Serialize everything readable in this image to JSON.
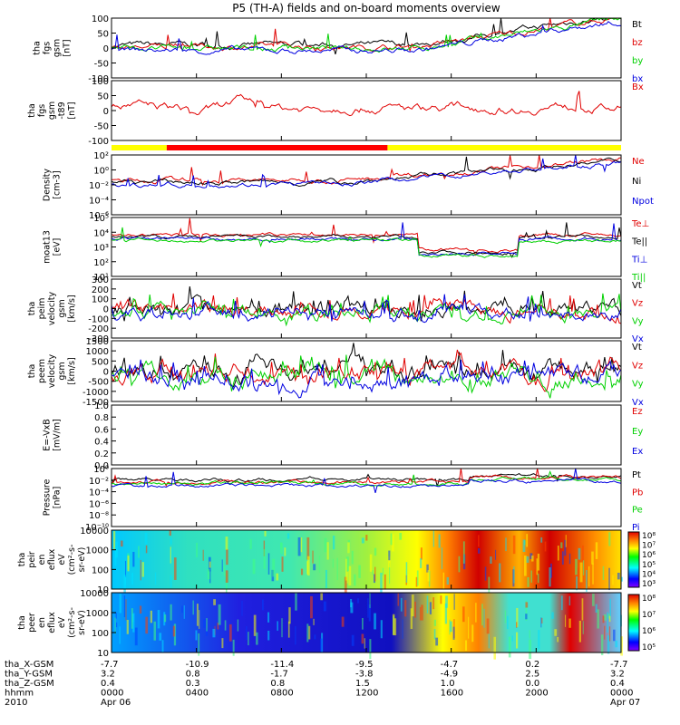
{
  "title": "P5 (TH-A) fields and on-board moments overview",
  "colors": {
    "black": "#000000",
    "red": "#e00000",
    "green": "#00d000",
    "blue": "#0000e0",
    "yellow": "#ffff00",
    "barred": "#ff0000"
  },
  "chart_data": [
    {
      "type": "line",
      "id": "fgs",
      "ylabel": [
        "tha",
        "fgs",
        "gsm",
        "[nT]"
      ],
      "ylim": [
        -100,
        100
      ],
      "yticks": [
        "100",
        "50",
        "0",
        "-50",
        "-100"
      ],
      "legend": [
        {
          "text": "Bt",
          "color": "#000000"
        },
        {
          "text": "bz",
          "color": "#e00000"
        },
        {
          "text": "by",
          "color": "#00d000"
        },
        {
          "text": "bx",
          "color": "#0000e0"
        }
      ]
    },
    {
      "type": "line",
      "id": "fgs-dsl",
      "ylabel": [
        "tha",
        "fgs",
        "gsm",
        "-t89",
        "[nT]"
      ],
      "ylim": [
        -120,
        120
      ],
      "yticks": [
        "100",
        "50",
        "0",
        "-50",
        "-100"
      ],
      "legend": [
        {
          "text": "Bx",
          "color": "#e00000"
        }
      ]
    },
    {
      "type": "bar",
      "id": "mode-bar",
      "segments": [
        {
          "from": 0,
          "to": 2.6,
          "color": "#ffff00"
        },
        {
          "from": 2.6,
          "to": 13.0,
          "color": "#ff0000"
        },
        {
          "from": 13.0,
          "to": 24,
          "color": "#ffff00"
        }
      ]
    },
    {
      "type": "line",
      "id": "density",
      "log": true,
      "ylabel": [
        "Density",
        "[cm-3]"
      ],
      "ylim": [
        -5,
        2
      ],
      "yticks": [
        "10²",
        "10⁰",
        "10⁻²",
        "10⁻⁴",
        "10⁻⁶"
      ],
      "legend": [
        {
          "text": "Ne",
          "color": "#e00000"
        },
        {
          "text": "Ni",
          "color": "#000000"
        },
        {
          "text": "Npot",
          "color": "#0000e0"
        }
      ]
    },
    {
      "type": "line",
      "id": "temp",
      "log": true,
      "ylabel": [
        "moat13",
        "[eV]"
      ],
      "ylim": [
        1,
        5
      ],
      "yticks": [
        "10⁵",
        "10⁴",
        "10³",
        "10²",
        "10¹"
      ],
      "legend": [
        {
          "text": "Te⊥",
          "color": "#e00000"
        },
        {
          "text": "Te||",
          "color": "#000000"
        },
        {
          "text": "Ti⊥",
          "color": "#0000e0"
        },
        {
          "text": "Ti||",
          "color": "#00d000"
        }
      ]
    },
    {
      "type": "line",
      "id": "peim-vel",
      "ylabel": [
        "tha",
        "peim",
        "velocity",
        "gsm",
        "[km/s]"
      ],
      "ylim": [
        -300,
        300
      ],
      "yticks": [
        "300",
        "200",
        "100",
        "0",
        "-100",
        "-200",
        "-300"
      ],
      "legend": [
        {
          "text": "Vt",
          "color": "#000000"
        },
        {
          "text": "Vz",
          "color": "#e00000"
        },
        {
          "text": "Vy",
          "color": "#00d000"
        },
        {
          "text": "Vx",
          "color": "#0000e0"
        }
      ]
    },
    {
      "type": "line",
      "id": "peem-vel",
      "ylabel": [
        "tha",
        "peem",
        "velocity",
        "gsm",
        "[km/s]"
      ],
      "ylim": [
        -1500,
        1500
      ],
      "yticks": [
        "1500",
        "1000",
        "500",
        "0",
        "-500",
        "-1000",
        "-1500"
      ],
      "legend": [
        {
          "text": "Vt",
          "color": "#000000"
        },
        {
          "text": "Vz",
          "color": "#e00000"
        },
        {
          "text": "Vy",
          "color": "#00d000"
        },
        {
          "text": "Vx",
          "color": "#0000e0"
        }
      ]
    },
    {
      "type": "line",
      "id": "efield",
      "ylabel": [
        "E=-VxB",
        "[mV/m]"
      ],
      "ylim": [
        0,
        1
      ],
      "yticks": [
        "1.0",
        "0.8",
        "0.6",
        "0.4",
        "0.2",
        "0.0"
      ],
      "legend": [
        {
          "text": "Ez",
          "color": "#e00000"
        },
        {
          "text": "Ey",
          "color": "#00d000"
        },
        {
          "text": "Ex",
          "color": "#0000e0"
        }
      ]
    },
    {
      "type": "line",
      "id": "pressure",
      "log": true,
      "ylabel": [
        "Pressure",
        "[nPa]"
      ],
      "ylim": [
        -10,
        1
      ],
      "yticks": [
        "10⁰",
        "10⁻²",
        "10⁻⁴",
        "10⁻⁶",
        "10⁻⁸",
        "10⁻¹⁰"
      ],
      "legend": [
        {
          "text": "Pt",
          "color": "#000000"
        },
        {
          "text": "Pb",
          "color": "#e00000"
        },
        {
          "text": "Pe",
          "color": "#00d000"
        },
        {
          "text": "Pi",
          "color": "#0000e0"
        }
      ]
    },
    {
      "type": "heatmap",
      "id": "peir",
      "ylabel": [
        "tha",
        "peir",
        "en",
        "eflux",
        "eV",
        "(cm²-s-",
        "sr-eV)"
      ],
      "yticks": [
        "10000",
        "1000",
        "100",
        "10"
      ],
      "colorbar": [
        "10⁸",
        "10⁷",
        "10⁶",
        "10⁵",
        "10⁴",
        "10³"
      ]
    },
    {
      "type": "heatmap",
      "id": "peer",
      "ylabel": [
        "tha",
        "peer",
        "en",
        "eflux",
        "eV",
        "(cm²-s-",
        "sr-eV)"
      ],
      "yticks": [
        "10000",
        "1000",
        "100",
        "10"
      ],
      "colorbar": [
        "10⁸",
        "10⁷",
        "10⁶",
        "10⁵"
      ]
    }
  ],
  "xaxis": {
    "rows": [
      {
        "label": "tha_X-GSM",
        "values": [
          "-7.7",
          "-10.9",
          "-11.4",
          "-9.5",
          "-4.7",
          "0.2",
          "-7.7"
        ]
      },
      {
        "label": "tha_Y-GSM",
        "values": [
          "3.2",
          "0.8",
          "-1.7",
          "-3.8",
          "-4.9",
          "2.5",
          "3.2"
        ]
      },
      {
        "label": "tha_Z-GSM",
        "values": [
          "0.4",
          "0.3",
          "0.8",
          "1.5",
          "1.0",
          "0.0",
          "0.4"
        ]
      },
      {
        "label": "hhmm",
        "values": [
          "0000",
          "0400",
          "0800",
          "1200",
          "1600",
          "2000",
          "0000"
        ]
      },
      {
        "label": "2010",
        "values": [
          "Apr 06",
          "",
          "",
          "",
          "",
          "",
          "Apr 07"
        ]
      }
    ],
    "tick_hours": [
      0,
      4,
      8,
      12,
      16,
      20,
      24
    ]
  }
}
